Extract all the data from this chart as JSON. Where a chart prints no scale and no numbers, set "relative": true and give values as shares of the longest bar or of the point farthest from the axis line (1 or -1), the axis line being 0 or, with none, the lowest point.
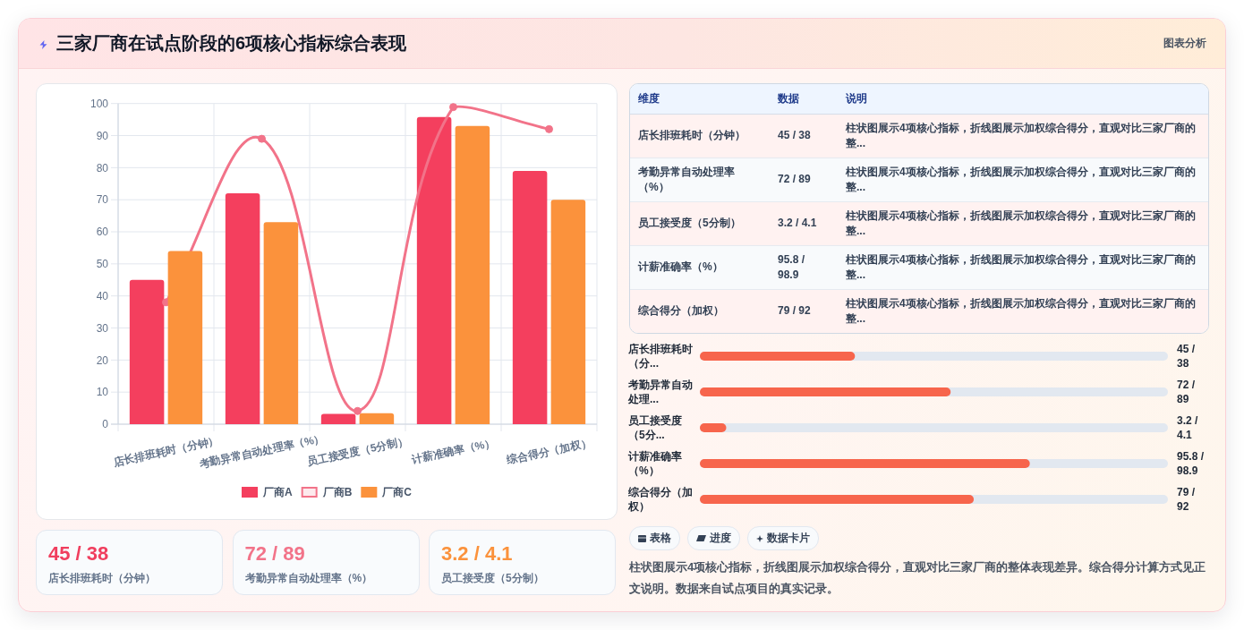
{
  "chart_data": [
    {
      "type": "other",
      "title": "三家厂商在试点阶段的6项核心指标综合表现",
      "annotations": [
        "图表分析"
      ]
    },
    {
      "type": "bar",
      "categories": [
        "店长排班耗时（分钟）",
        "考勤异常自动处理率（%）",
        "员工接受度（5分制）",
        "计薪准确率（%）",
        "综合得分（加权）"
      ],
      "series": [
        {
          "name": "厂商A",
          "type": "bar",
          "color": "#f43f5e",
          "values": [
            45,
            72,
            3.2,
            95.8,
            79
          ]
        },
        {
          "name": "厂商B",
          "type": "line",
          "color": "#f27389",
          "values": [
            38,
            89,
            4.1,
            98.9,
            92
          ]
        },
        {
          "name": "厂商C",
          "type": "bar",
          "color": "#fb923c",
          "values": [
            54,
            63,
            3.4,
            93,
            70
          ]
        }
      ],
      "ylim": [
        0,
        100
      ],
      "yticks": [
        0,
        10,
        20,
        30,
        40,
        50,
        60,
        70,
        80,
        90,
        100
      ],
      "grid": true,
      "legend": "bottom",
      "marker": "circle"
    },
    {
      "type": "other",
      "categories": [
        "维度",
        "数据",
        "说明"
      ],
      "cell_labels": [
        [
          "店长排班耗时（分钟）",
          "45 / 38",
          "柱状图展示4项核心指标，折线图展示加权综合得分，直观对比三家厂商的整..."
        ],
        [
          "考勤异常自动处理率（%）",
          "72 / 89",
          "柱状图展示4项核心指标，折线图展示加权综合得分，直观对比三家厂商的整..."
        ],
        [
          "员工接受度（5分制）",
          "3.2 / 4.1",
          "柱状图展示4项核心指标，折线图展示加权综合得分，直观对比三家厂商的整..."
        ],
        [
          "计薪准确率（%）",
          "95.8 / 98.9",
          "柱状图展示4项核心指标，折线图展示加权综合得分，直观对比三家厂商的整..."
        ],
        [
          "综合得分（加权）",
          "79 / 92",
          "柱状图展示4项核心指标，折线图展示加权综合得分，直观对比三家厂商的整..."
        ]
      ]
    },
    {
      "type": "bar",
      "orientation": "horizontal",
      "relative": true,
      "categories": [
        "店长排班耗时（分...",
        "考勤异常自动处理...",
        "员工接受度（5分...",
        "计薪准确率（%）",
        "综合得分（加权）"
      ],
      "values": [
        0.47,
        0.76,
        0.08,
        1,
        0.83
      ],
      "annotations": [
        "45 / 38",
        "72 / 89",
        "3.2 / 4.1",
        "95.8 / 98.9",
        "79 / 92"
      ],
      "color": "#f7654c"
    },
    {
      "type": "other",
      "categories": [
        "表格",
        "进度",
        "数据卡片"
      ],
      "annotations": [
        "柱状图展示4项核心指标，折线图展示加权综合得分，直观对比三家厂商的整体表现差异。综合得分计算方式见正文说明。数据来自试点项目的真实记录。"
      ]
    },
    {
      "type": "other",
      "categories": [
        "店长排班耗时（分钟）",
        "考勤异常自动处理率（%）",
        "员工接受度（5分制）"
      ],
      "value_labels": [
        "45 / 38",
        "72 / 89",
        "3.2 / 4.1"
      ]
    }
  ]
}
